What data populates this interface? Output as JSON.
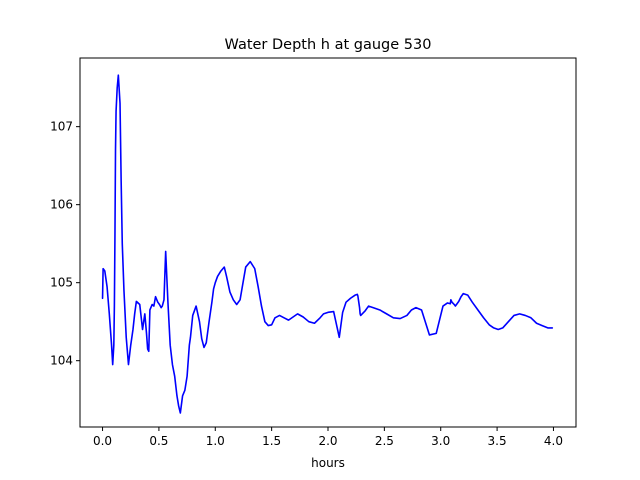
{
  "chart_data": {
    "type": "line",
    "title": "Water Depth h at gauge 530",
    "xlabel": "hours",
    "ylabel": "",
    "xlim": [
      -0.2,
      4.2
    ],
    "ylim": [
      103.15,
      107.88
    ],
    "xticks": [
      0.0,
      0.5,
      1.0,
      1.5,
      2.0,
      2.5,
      3.0,
      3.5,
      4.0
    ],
    "xtick_labels": [
      "0.0",
      "0.5",
      "1.0",
      "1.5",
      "2.0",
      "2.5",
      "3.0",
      "3.5",
      "4.0"
    ],
    "yticks": [
      104,
      105,
      106,
      107
    ],
    "ytick_labels": [
      "104",
      "105",
      "106",
      "107"
    ],
    "grid": false,
    "legend": "none",
    "series": [
      {
        "color": "#0000ff",
        "x": [
          0.0,
          0.005,
          0.02,
          0.04,
          0.06,
          0.08,
          0.09,
          0.1,
          0.105,
          0.11,
          0.115,
          0.12,
          0.13,
          0.14,
          0.155,
          0.165,
          0.175,
          0.19,
          0.21,
          0.23,
          0.25,
          0.27,
          0.285,
          0.3,
          0.33,
          0.355,
          0.375,
          0.39,
          0.4,
          0.41,
          0.42,
          0.44,
          0.455,
          0.47,
          0.49,
          0.505,
          0.52,
          0.53,
          0.545,
          0.56,
          0.58,
          0.6,
          0.62,
          0.64,
          0.66,
          0.675,
          0.69,
          0.71,
          0.73,
          0.75,
          0.77,
          0.78,
          0.8,
          0.83,
          0.86,
          0.88,
          0.9,
          0.92,
          0.945,
          0.97,
          0.985,
          1.0,
          1.02,
          1.05,
          1.08,
          1.1,
          1.13,
          1.16,
          1.19,
          1.22,
          1.24,
          1.27,
          1.31,
          1.35,
          1.38,
          1.41,
          1.44,
          1.47,
          1.5,
          1.53,
          1.57,
          1.61,
          1.65,
          1.69,
          1.73,
          1.78,
          1.83,
          1.88,
          1.93,
          1.96,
          2.0,
          2.05,
          2.1,
          2.13,
          2.16,
          2.2,
          2.24,
          2.26,
          2.265,
          2.27,
          2.28,
          2.285,
          2.29,
          2.33,
          2.36,
          2.4,
          2.46,
          2.52,
          2.58,
          2.64,
          2.7,
          2.74,
          2.78,
          2.83,
          2.9,
          2.96,
          3.02,
          3.06,
          3.085,
          3.09,
          3.1,
          3.12,
          3.13,
          3.14,
          3.16,
          3.18,
          3.2,
          3.24,
          3.28,
          3.33,
          3.38,
          3.43,
          3.47,
          3.51,
          3.55,
          3.6,
          3.65,
          3.7,
          3.75,
          3.8,
          3.85,
          3.9,
          3.95,
          3.99
        ],
        "y": [
          104.8,
          105.18,
          105.15,
          104.95,
          104.6,
          104.2,
          103.95,
          104.2,
          104.7,
          105.6,
          106.7,
          107.2,
          107.5,
          107.66,
          107.3,
          106.3,
          105.5,
          104.9,
          104.3,
          103.95,
          104.2,
          104.4,
          104.6,
          104.76,
          104.72,
          104.4,
          104.6,
          104.35,
          104.15,
          104.12,
          104.65,
          104.72,
          104.7,
          104.82,
          104.75,
          104.72,
          104.68,
          104.7,
          104.78,
          105.4,
          104.75,
          104.2,
          103.95,
          103.8,
          103.55,
          103.42,
          103.33,
          103.55,
          103.62,
          103.8,
          104.2,
          104.3,
          104.58,
          104.7,
          104.5,
          104.28,
          104.17,
          104.23,
          104.5,
          104.75,
          104.92,
          105.0,
          105.08,
          105.15,
          105.2,
          105.08,
          104.88,
          104.78,
          104.72,
          104.78,
          104.95,
          105.2,
          105.27,
          105.18,
          104.95,
          104.7,
          104.5,
          104.45,
          104.46,
          104.55,
          104.58,
          104.55,
          104.52,
          104.56,
          104.6,
          104.56,
          104.5,
          104.48,
          104.55,
          104.6,
          104.62,
          104.63,
          104.3,
          104.62,
          104.75,
          104.8,
          104.84,
          104.85,
          104.83,
          104.78,
          104.68,
          104.6,
          104.58,
          104.64,
          104.7,
          104.68,
          104.65,
          104.6,
          104.55,
          104.54,
          104.58,
          104.65,
          104.68,
          104.65,
          104.33,
          104.35,
          104.7,
          104.74,
          104.73,
          104.78,
          104.75,
          104.72,
          104.7,
          104.72,
          104.76,
          104.82,
          104.86,
          104.84,
          104.75,
          104.65,
          104.55,
          104.46,
          104.42,
          104.4,
          104.42,
          104.5,
          104.58,
          104.6,
          104.58,
          104.55,
          104.48,
          104.45,
          104.42,
          104.42
        ]
      }
    ]
  }
}
